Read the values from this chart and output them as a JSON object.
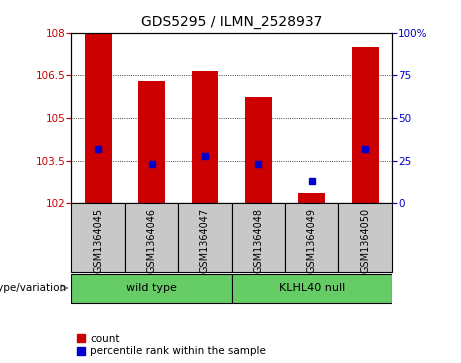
{
  "title": "GDS5295 / ILMN_2528937",
  "samples": [
    "GSM1364045",
    "GSM1364046",
    "GSM1364047",
    "GSM1364048",
    "GSM1364049",
    "GSM1364050"
  ],
  "count_values": [
    108.0,
    106.3,
    106.65,
    105.75,
    102.35,
    107.5
  ],
  "percentile_values": [
    32,
    23,
    28,
    23,
    13,
    32
  ],
  "ymin": 102,
  "ymax": 108,
  "yticks_left": [
    102,
    103.5,
    105,
    106.5,
    108
  ],
  "yticks_right_vals": [
    0,
    25,
    50,
    75,
    100
  ],
  "yticks_right_labels": [
    "0",
    "25",
    "50",
    "75",
    "100%"
  ],
  "bar_color": "#cc0000",
  "dot_color": "#0000cc",
  "group1_label": "wild type",
  "group2_label": "KLHL40 null",
  "group_color": "#66cc66",
  "genotype_label": "genotype/variation",
  "legend_count_label": "count",
  "legend_percentile_label": "percentile rank within the sample",
  "sample_box_color": "#c8c8c8",
  "bar_width": 0.5
}
